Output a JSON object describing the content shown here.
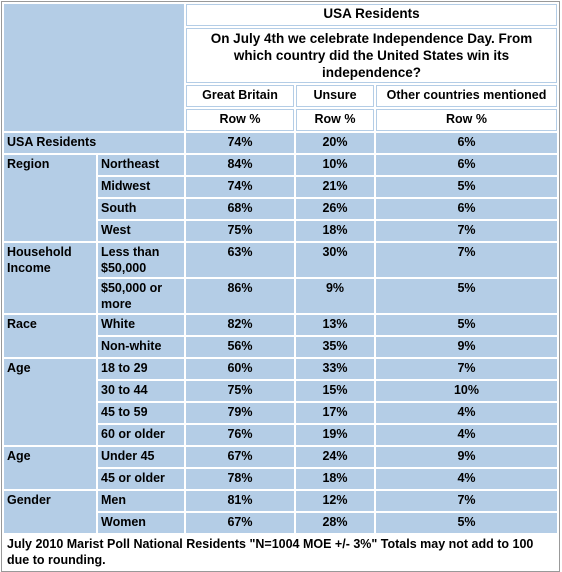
{
  "header": {
    "title": "USA Residents",
    "question": "On July 4th we celebrate Independence Day. From which country did the United States win its independence?",
    "columns": [
      "Great Britain",
      "Unsure",
      "Other countries mentioned"
    ],
    "units": [
      "Row %",
      "Row %",
      "Row %"
    ]
  },
  "total": {
    "label": "USA Residents",
    "values": [
      "74%",
      "20%",
      "6%"
    ]
  },
  "groups": [
    {
      "label": "Region",
      "rows": [
        {
          "label": "Northeast",
          "values": [
            "84%",
            "10%",
            "6%"
          ]
        },
        {
          "label": "Midwest",
          "values": [
            "74%",
            "21%",
            "5%"
          ]
        },
        {
          "label": "South",
          "values": [
            "68%",
            "26%",
            "6%"
          ]
        },
        {
          "label": "West",
          "values": [
            "75%",
            "18%",
            "7%"
          ]
        }
      ]
    },
    {
      "label": "Household Income",
      "rows": [
        {
          "label": "Less than $50,000",
          "values": [
            "63%",
            "30%",
            "7%"
          ]
        },
        {
          "label": "$50,000 or more",
          "values": [
            "86%",
            "9%",
            "5%"
          ]
        }
      ]
    },
    {
      "label": "Race",
      "rows": [
        {
          "label": "White",
          "values": [
            "82%",
            "13%",
            "5%"
          ]
        },
        {
          "label": "Non-white",
          "values": [
            "56%",
            "35%",
            "9%"
          ]
        }
      ]
    },
    {
      "label": "Age",
      "rows": [
        {
          "label": "18 to 29",
          "values": [
            "60%",
            "33%",
            "7%"
          ]
        },
        {
          "label": "30 to 44",
          "values": [
            "75%",
            "15%",
            "10%"
          ]
        },
        {
          "label": "45 to 59",
          "values": [
            "79%",
            "17%",
            "4%"
          ]
        },
        {
          "label": "60 or older",
          "values": [
            "76%",
            "19%",
            "4%"
          ]
        }
      ]
    },
    {
      "label": "Age",
      "rows": [
        {
          "label": "Under 45",
          "values": [
            "67%",
            "24%",
            "9%"
          ]
        },
        {
          "label": "45 or older",
          "values": [
            "78%",
            "18%",
            "4%"
          ]
        }
      ]
    },
    {
      "label": "Gender",
      "rows": [
        {
          "label": "Men",
          "values": [
            "81%",
            "12%",
            "7%"
          ]
        },
        {
          "label": "Women",
          "values": [
            "67%",
            "28%",
            "5%"
          ]
        }
      ]
    }
  ],
  "footer": "July 2010 Marist Poll National Residents \"N=1004 MOE +/- 3%\" Totals may not add to 100 due to rounding."
}
